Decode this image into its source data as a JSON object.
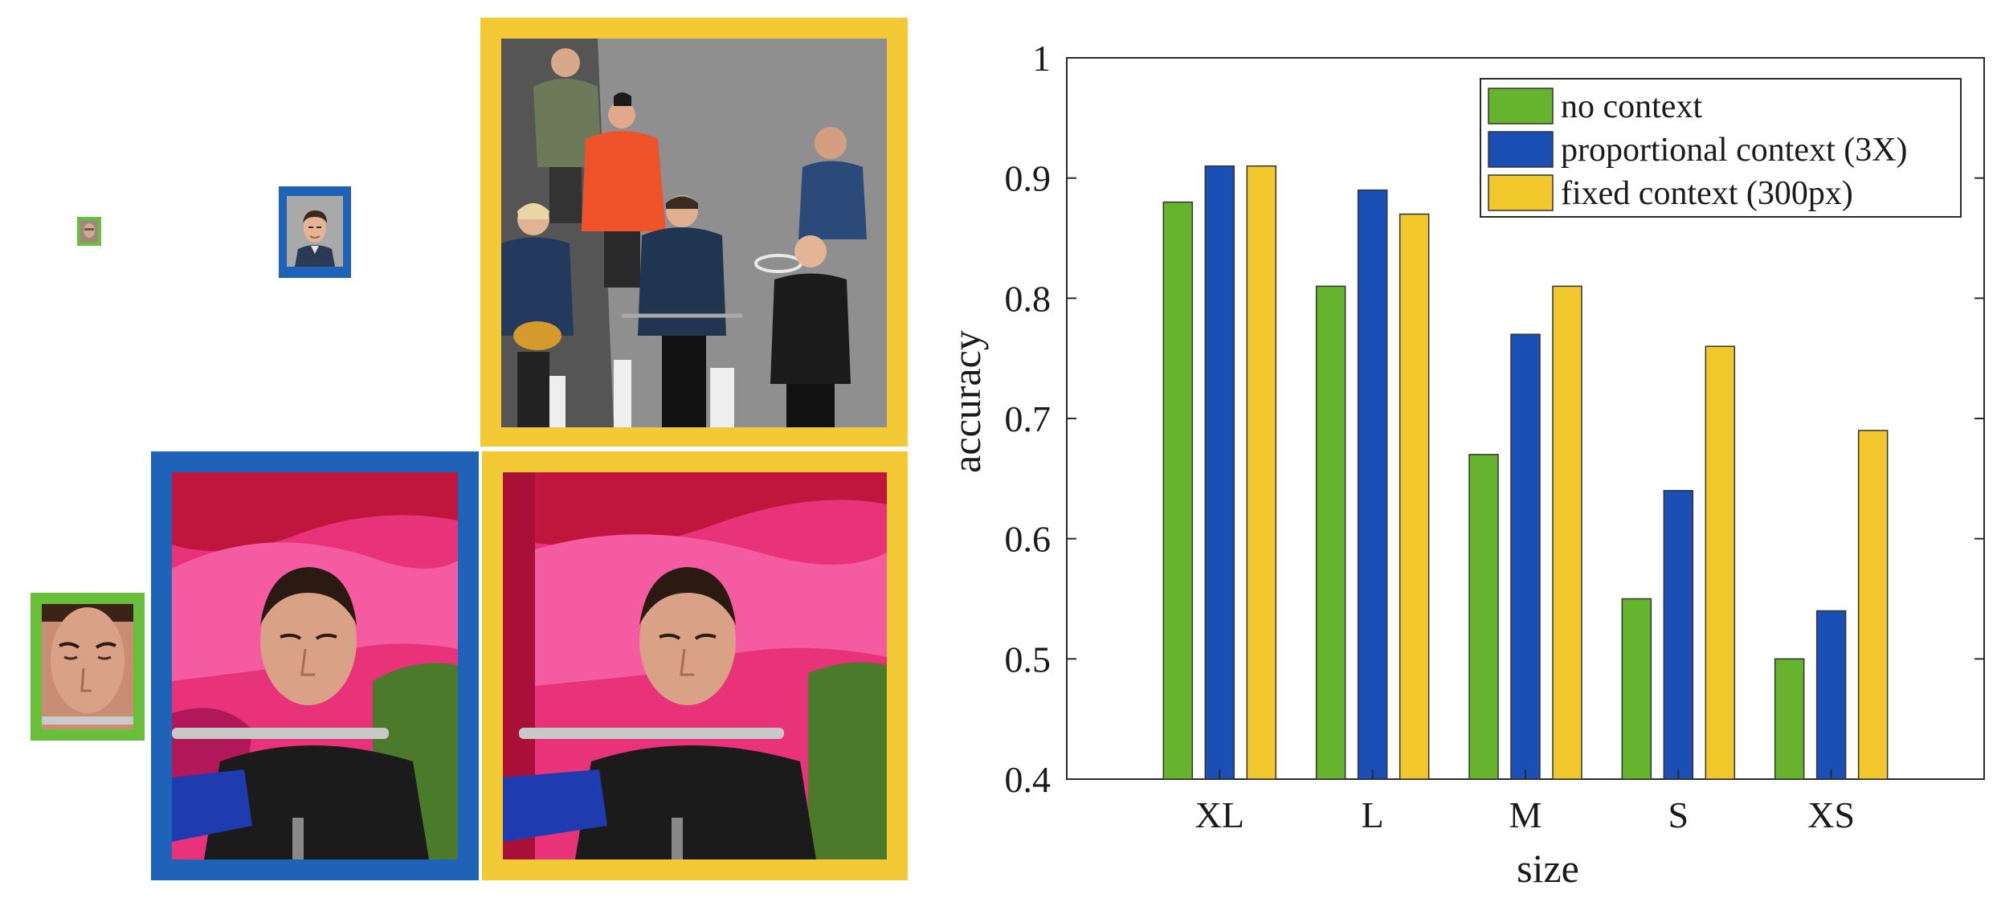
{
  "colors": {
    "green": "#66b32e",
    "blue": "#1a4fb5",
    "yellow": "#f2c72b",
    "frame_blue": "#1f63b8",
    "frame_yellow": "#f3ca35",
    "frame_green": "#6abf3a"
  },
  "photos": [
    {
      "name": "tiny-face-green",
      "frame": "green",
      "content": "face"
    },
    {
      "name": "small-face-blue",
      "frame": "blue",
      "content": "face"
    },
    {
      "name": "cyclists-yellow",
      "frame": "yellow",
      "content": "cyclists"
    },
    {
      "name": "flute-face-green",
      "frame": "green",
      "content": "face"
    },
    {
      "name": "flute-context-blue",
      "frame": "blue",
      "content": "flute"
    },
    {
      "name": "flute-context-yellow",
      "frame": "yellow",
      "content": "flute"
    }
  ],
  "chart_data": {
    "type": "bar",
    "categories": [
      "XL",
      "L",
      "M",
      "S",
      "XS"
    ],
    "series": [
      {
        "name": "no context",
        "color": "#66b32e",
        "values": [
          0.88,
          0.81,
          0.67,
          0.55,
          0.5
        ]
      },
      {
        "name": "proportional context (3X)",
        "color": "#1a4fb5",
        "values": [
          0.91,
          0.89,
          0.77,
          0.64,
          0.54
        ]
      },
      {
        "name": "fixed context (300px)",
        "color": "#f2c72b",
        "values": [
          0.91,
          0.87,
          0.81,
          0.76,
          0.69
        ]
      }
    ],
    "xlabel": "size",
    "ylabel": "accuracy",
    "ylim": [
      0.4,
      1.0
    ],
    "yticks": [
      "0.4",
      "0.5",
      "0.6",
      "0.7",
      "0.8",
      "0.9",
      "1"
    ],
    "grid": false,
    "legend_position": "top-right"
  }
}
